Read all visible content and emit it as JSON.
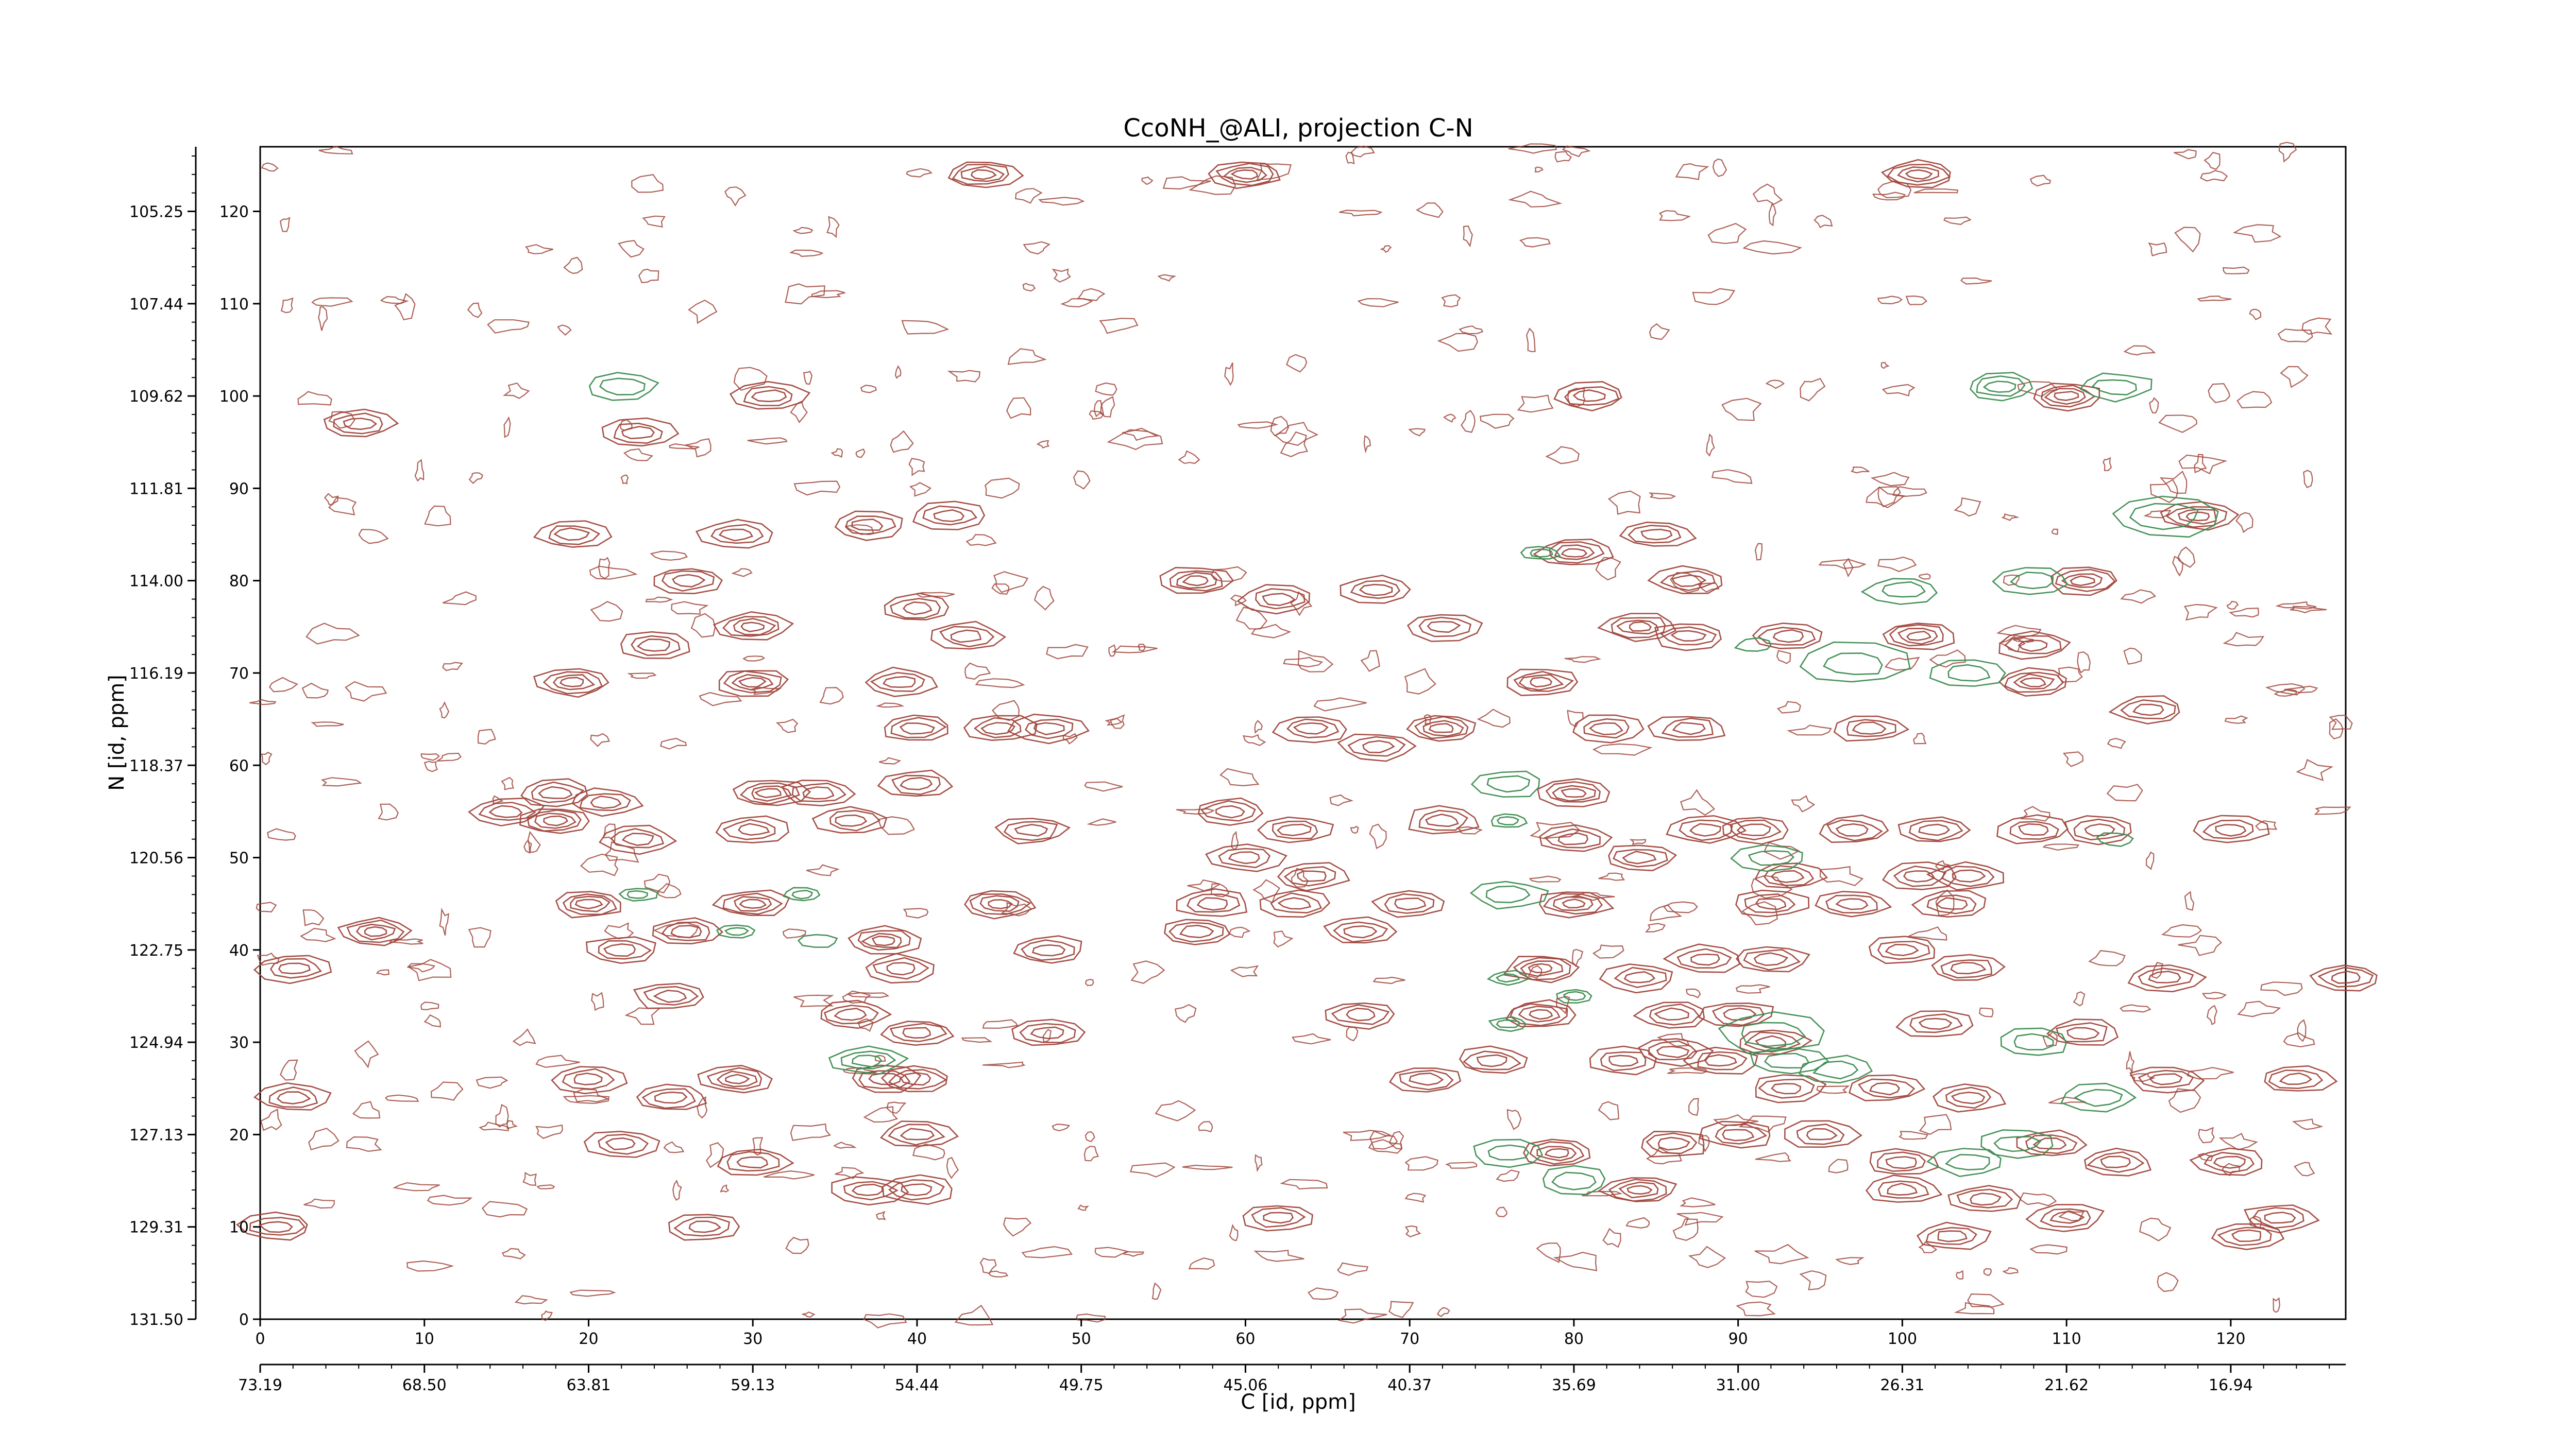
{
  "chart_data": {
    "type": "heatmap",
    "subtype": "2D NMR contour plot",
    "title": "CcoNH_@ALI, projection C-N",
    "xlabel": "C [id, ppm]",
    "ylabel": "N [id, ppm]",
    "x_index_range": [
      0,
      127
    ],
    "y_index_range": [
      0,
      127
    ],
    "x_index_ticks": [
      0,
      10,
      20,
      30,
      40,
      50,
      60,
      70,
      80,
      90,
      100,
      110,
      120
    ],
    "y_index_ticks": [
      0,
      10,
      20,
      30,
      40,
      50,
      60,
      70,
      80,
      90,
      100,
      110,
      120
    ],
    "x_ppm_ticks": [
      "73.19",
      "68.50",
      "63.81",
      "59.13",
      "54.44",
      "49.75",
      "45.06",
      "40.37",
      "35.69",
      "31.00",
      "26.31",
      "21.62",
      "16.94"
    ],
    "y_ppm_ticks": [
      "131.50",
      "129.31",
      "127.13",
      "124.94",
      "122.75",
      "120.56",
      "118.37",
      "116.19",
      "114.00",
      "111.81",
      "109.62",
      "107.44",
      "105.25"
    ],
    "grid": false,
    "colors": {
      "positive": "#a0463c",
      "negative": "#3c8c50",
      "axis": "#000000"
    },
    "positive_peaks": [
      [
        44,
        124,
        2,
        4
      ],
      [
        60,
        124,
        2,
        4
      ],
      [
        101,
        124,
        2,
        4
      ],
      [
        6,
        97,
        2,
        3
      ],
      [
        23,
        96,
        2,
        3
      ],
      [
        31,
        100,
        2,
        3
      ],
      [
        81,
        100,
        2,
        3
      ],
      [
        110,
        100,
        2,
        4
      ],
      [
        19,
        85,
        2,
        3
      ],
      [
        29,
        85,
        2,
        3
      ],
      [
        37,
        86,
        2,
        3
      ],
      [
        42,
        87,
        2,
        3
      ],
      [
        57,
        80,
        2,
        4
      ],
      [
        62,
        78,
        2,
        3
      ],
      [
        68,
        79,
        2,
        3
      ],
      [
        80,
        83,
        2,
        4
      ],
      [
        85,
        85,
        2,
        3
      ],
      [
        87,
        80,
        2,
        3
      ],
      [
        111,
        80,
        2,
        4
      ],
      [
        118,
        87,
        2,
        4
      ],
      [
        26,
        80,
        2,
        3
      ],
      [
        30,
        75,
        2,
        4
      ],
      [
        19,
        69,
        2,
        4
      ],
      [
        30,
        69,
        2,
        4
      ],
      [
        39,
        69,
        2,
        3
      ],
      [
        24,
        73,
        2,
        3
      ],
      [
        40,
        77,
        2,
        3
      ],
      [
        43,
        74,
        2,
        3
      ],
      [
        72,
        75,
        2,
        3
      ],
      [
        84,
        75,
        2,
        4
      ],
      [
        87,
        74,
        2,
        3
      ],
      [
        93,
        74,
        2,
        3
      ],
      [
        101,
        74,
        2,
        4
      ],
      [
        108,
        73,
        2,
        3
      ],
      [
        78,
        69,
        2,
        4
      ],
      [
        108,
        69,
        2,
        4
      ],
      [
        115,
        66,
        2,
        3
      ],
      [
        40,
        64,
        2,
        3
      ],
      [
        45,
        64,
        2,
        3
      ],
      [
        48,
        64,
        2,
        3
      ],
      [
        64,
        64,
        2,
        3
      ],
      [
        68,
        62,
        2,
        3
      ],
      [
        72,
        64,
        2,
        4
      ],
      [
        82,
        64,
        2,
        3
      ],
      [
        87,
        64,
        2,
        3
      ],
      [
        98,
        64,
        2,
        3
      ],
      [
        18,
        57,
        2,
        3
      ],
      [
        21,
        56,
        2,
        3
      ],
      [
        31,
        57,
        2,
        4
      ],
      [
        34,
        57,
        2,
        3
      ],
      [
        40,
        58,
        2,
        3
      ],
      [
        15,
        55,
        2,
        3
      ],
      [
        18,
        54,
        2,
        4
      ],
      [
        23,
        52,
        2,
        3
      ],
      [
        30,
        53,
        2,
        3
      ],
      [
        36,
        54,
        2,
        3
      ],
      [
        47,
        53,
        2,
        3
      ],
      [
        59,
        55,
        2,
        3
      ],
      [
        63,
        53,
        2,
        3
      ],
      [
        72,
        54,
        2,
        3
      ],
      [
        80,
        57,
        2,
        4
      ],
      [
        80,
        52,
        2,
        3
      ],
      [
        88,
        53,
        2,
        3
      ],
      [
        91,
        53,
        2,
        3
      ],
      [
        97,
        53,
        2,
        3
      ],
      [
        102,
        53,
        2,
        3
      ],
      [
        108,
        53,
        2,
        3
      ],
      [
        112,
        53,
        2,
        3
      ],
      [
        120,
        53,
        2,
        3
      ],
      [
        60,
        50,
        2,
        3
      ],
      [
        64,
        48,
        2,
        3
      ],
      [
        84,
        50,
        2,
        3
      ],
      [
        93,
        48,
        2,
        3
      ],
      [
        101,
        48,
        2,
        3
      ],
      [
        104,
        48,
        2,
        3
      ],
      [
        20,
        45,
        2,
        4
      ],
      [
        30,
        45,
        2,
        4
      ],
      [
        45,
        45,
        2,
        4
      ],
      [
        58,
        45,
        2,
        3
      ],
      [
        63,
        45,
        2,
        3
      ],
      [
        70,
        45,
        2,
        3
      ],
      [
        80,
        45,
        2,
        4
      ],
      [
        92,
        45,
        2,
        3
      ],
      [
        97,
        45,
        2,
        3
      ],
      [
        103,
        45,
        2,
        3
      ],
      [
        7,
        42,
        2,
        4
      ],
      [
        22,
        40,
        2,
        3
      ],
      [
        26,
        42,
        2,
        3
      ],
      [
        38,
        41,
        2,
        4
      ],
      [
        48,
        40,
        2,
        3
      ],
      [
        57,
        42,
        2,
        3
      ],
      [
        67,
        42,
        2,
        3
      ],
      [
        2,
        38,
        2,
        3
      ],
      [
        39,
        38,
        2,
        3
      ],
      [
        78,
        38,
        2,
        4
      ],
      [
        84,
        37,
        2,
        3
      ],
      [
        88,
        39,
        2,
        3
      ],
      [
        92,
        39,
        2,
        3
      ],
      [
        100,
        40,
        2,
        3
      ],
      [
        104,
        38,
        2,
        3
      ],
      [
        116,
        37,
        2,
        3
      ],
      [
        127,
        37,
        2,
        3
      ],
      [
        25,
        35,
        2,
        3
      ],
      [
        36,
        33,
        2,
        3
      ],
      [
        40,
        31,
        2,
        3
      ],
      [
        48,
        31,
        2,
        3
      ],
      [
        67,
        33,
        2,
        3
      ],
      [
        78,
        33,
        2,
        4
      ],
      [
        86,
        33,
        2,
        3
      ],
      [
        90,
        33,
        2,
        3
      ],
      [
        92,
        30,
        2,
        3
      ],
      [
        102,
        32,
        2,
        3
      ],
      [
        111,
        31,
        2,
        3
      ],
      [
        86,
        29,
        2,
        3
      ],
      [
        38,
        26,
        2,
        3
      ],
      [
        75,
        28,
        2,
        3
      ],
      [
        83,
        28,
        2,
        3
      ],
      [
        89,
        28,
        2,
        3
      ],
      [
        20,
        26,
        2,
        3
      ],
      [
        25,
        24,
        2,
        3
      ],
      [
        29,
        26,
        2,
        4
      ],
      [
        40,
        26,
        2,
        3
      ],
      [
        71,
        26,
        2,
        3
      ],
      [
        93,
        25,
        2,
        3
      ],
      [
        99,
        25,
        2,
        3
      ],
      [
        104,
        24,
        2,
        3
      ],
      [
        116,
        26,
        2,
        3
      ],
      [
        124,
        26,
        2,
        3
      ],
      [
        2,
        24,
        2,
        3
      ],
      [
        22,
        19,
        2,
        3
      ],
      [
        40,
        20,
        2,
        3
      ],
      [
        79,
        18,
        2,
        4
      ],
      [
        86,
        19,
        2,
        3
      ],
      [
        90,
        20,
        2,
        3
      ],
      [
        95,
        20,
        2,
        3
      ],
      [
        100,
        17,
        2,
        3
      ],
      [
        109,
        19,
        2,
        3
      ],
      [
        113,
        17,
        2,
        3
      ],
      [
        120,
        17,
        2,
        3
      ],
      [
        30,
        17,
        2,
        3
      ],
      [
        37,
        14,
        2,
        3
      ],
      [
        40,
        14,
        2,
        3
      ],
      [
        84,
        14,
        2,
        4
      ],
      [
        100,
        14,
        2,
        3
      ],
      [
        105,
        13,
        2,
        3
      ],
      [
        62,
        11,
        2,
        3
      ],
      [
        123,
        11,
        2,
        3
      ],
      [
        27,
        10,
        2,
        3
      ],
      [
        121,
        9,
        2,
        3
      ],
      [
        110,
        11,
        2,
        3
      ],
      [
        103,
        9,
        2,
        3
      ],
      [
        1,
        10,
        2,
        3
      ]
    ],
    "negative_peaks": [
      [
        22,
        101,
        2,
        2
      ],
      [
        106,
        101,
        2,
        3
      ],
      [
        113,
        101,
        2,
        2
      ],
      [
        116,
        87,
        3,
        2
      ],
      [
        78,
        83,
        1,
        2
      ],
      [
        100,
        79,
        2,
        2
      ],
      [
        108,
        80,
        2,
        2
      ],
      [
        91,
        73,
        1,
        1
      ],
      [
        97,
        71,
        3,
        2
      ],
      [
        104,
        70,
        2,
        2
      ],
      [
        76,
        58,
        2,
        2
      ],
      [
        76,
        54,
        1,
        2
      ],
      [
        92,
        50,
        2,
        2
      ],
      [
        113,
        52,
        1,
        1
      ],
      [
        76,
        46,
        2,
        2
      ],
      [
        23,
        46,
        1,
        2
      ],
      [
        33,
        46,
        1,
        2
      ],
      [
        29,
        42,
        1,
        2
      ],
      [
        34,
        41,
        1,
        1
      ],
      [
        76,
        37,
        1,
        2
      ],
      [
        80,
        35,
        1,
        2
      ],
      [
        76,
        32,
        1,
        2
      ],
      [
        92,
        31,
        3,
        2
      ],
      [
        93,
        28,
        2,
        2
      ],
      [
        96,
        27,
        2,
        2
      ],
      [
        37,
        28,
        2,
        3
      ],
      [
        80,
        15,
        2,
        2
      ],
      [
        76,
        18,
        2,
        2
      ],
      [
        104,
        17,
        2,
        2
      ],
      [
        107,
        19,
        2,
        2
      ],
      [
        108,
        30,
        2,
        2
      ],
      [
        112,
        24,
        2,
        2
      ]
    ]
  }
}
